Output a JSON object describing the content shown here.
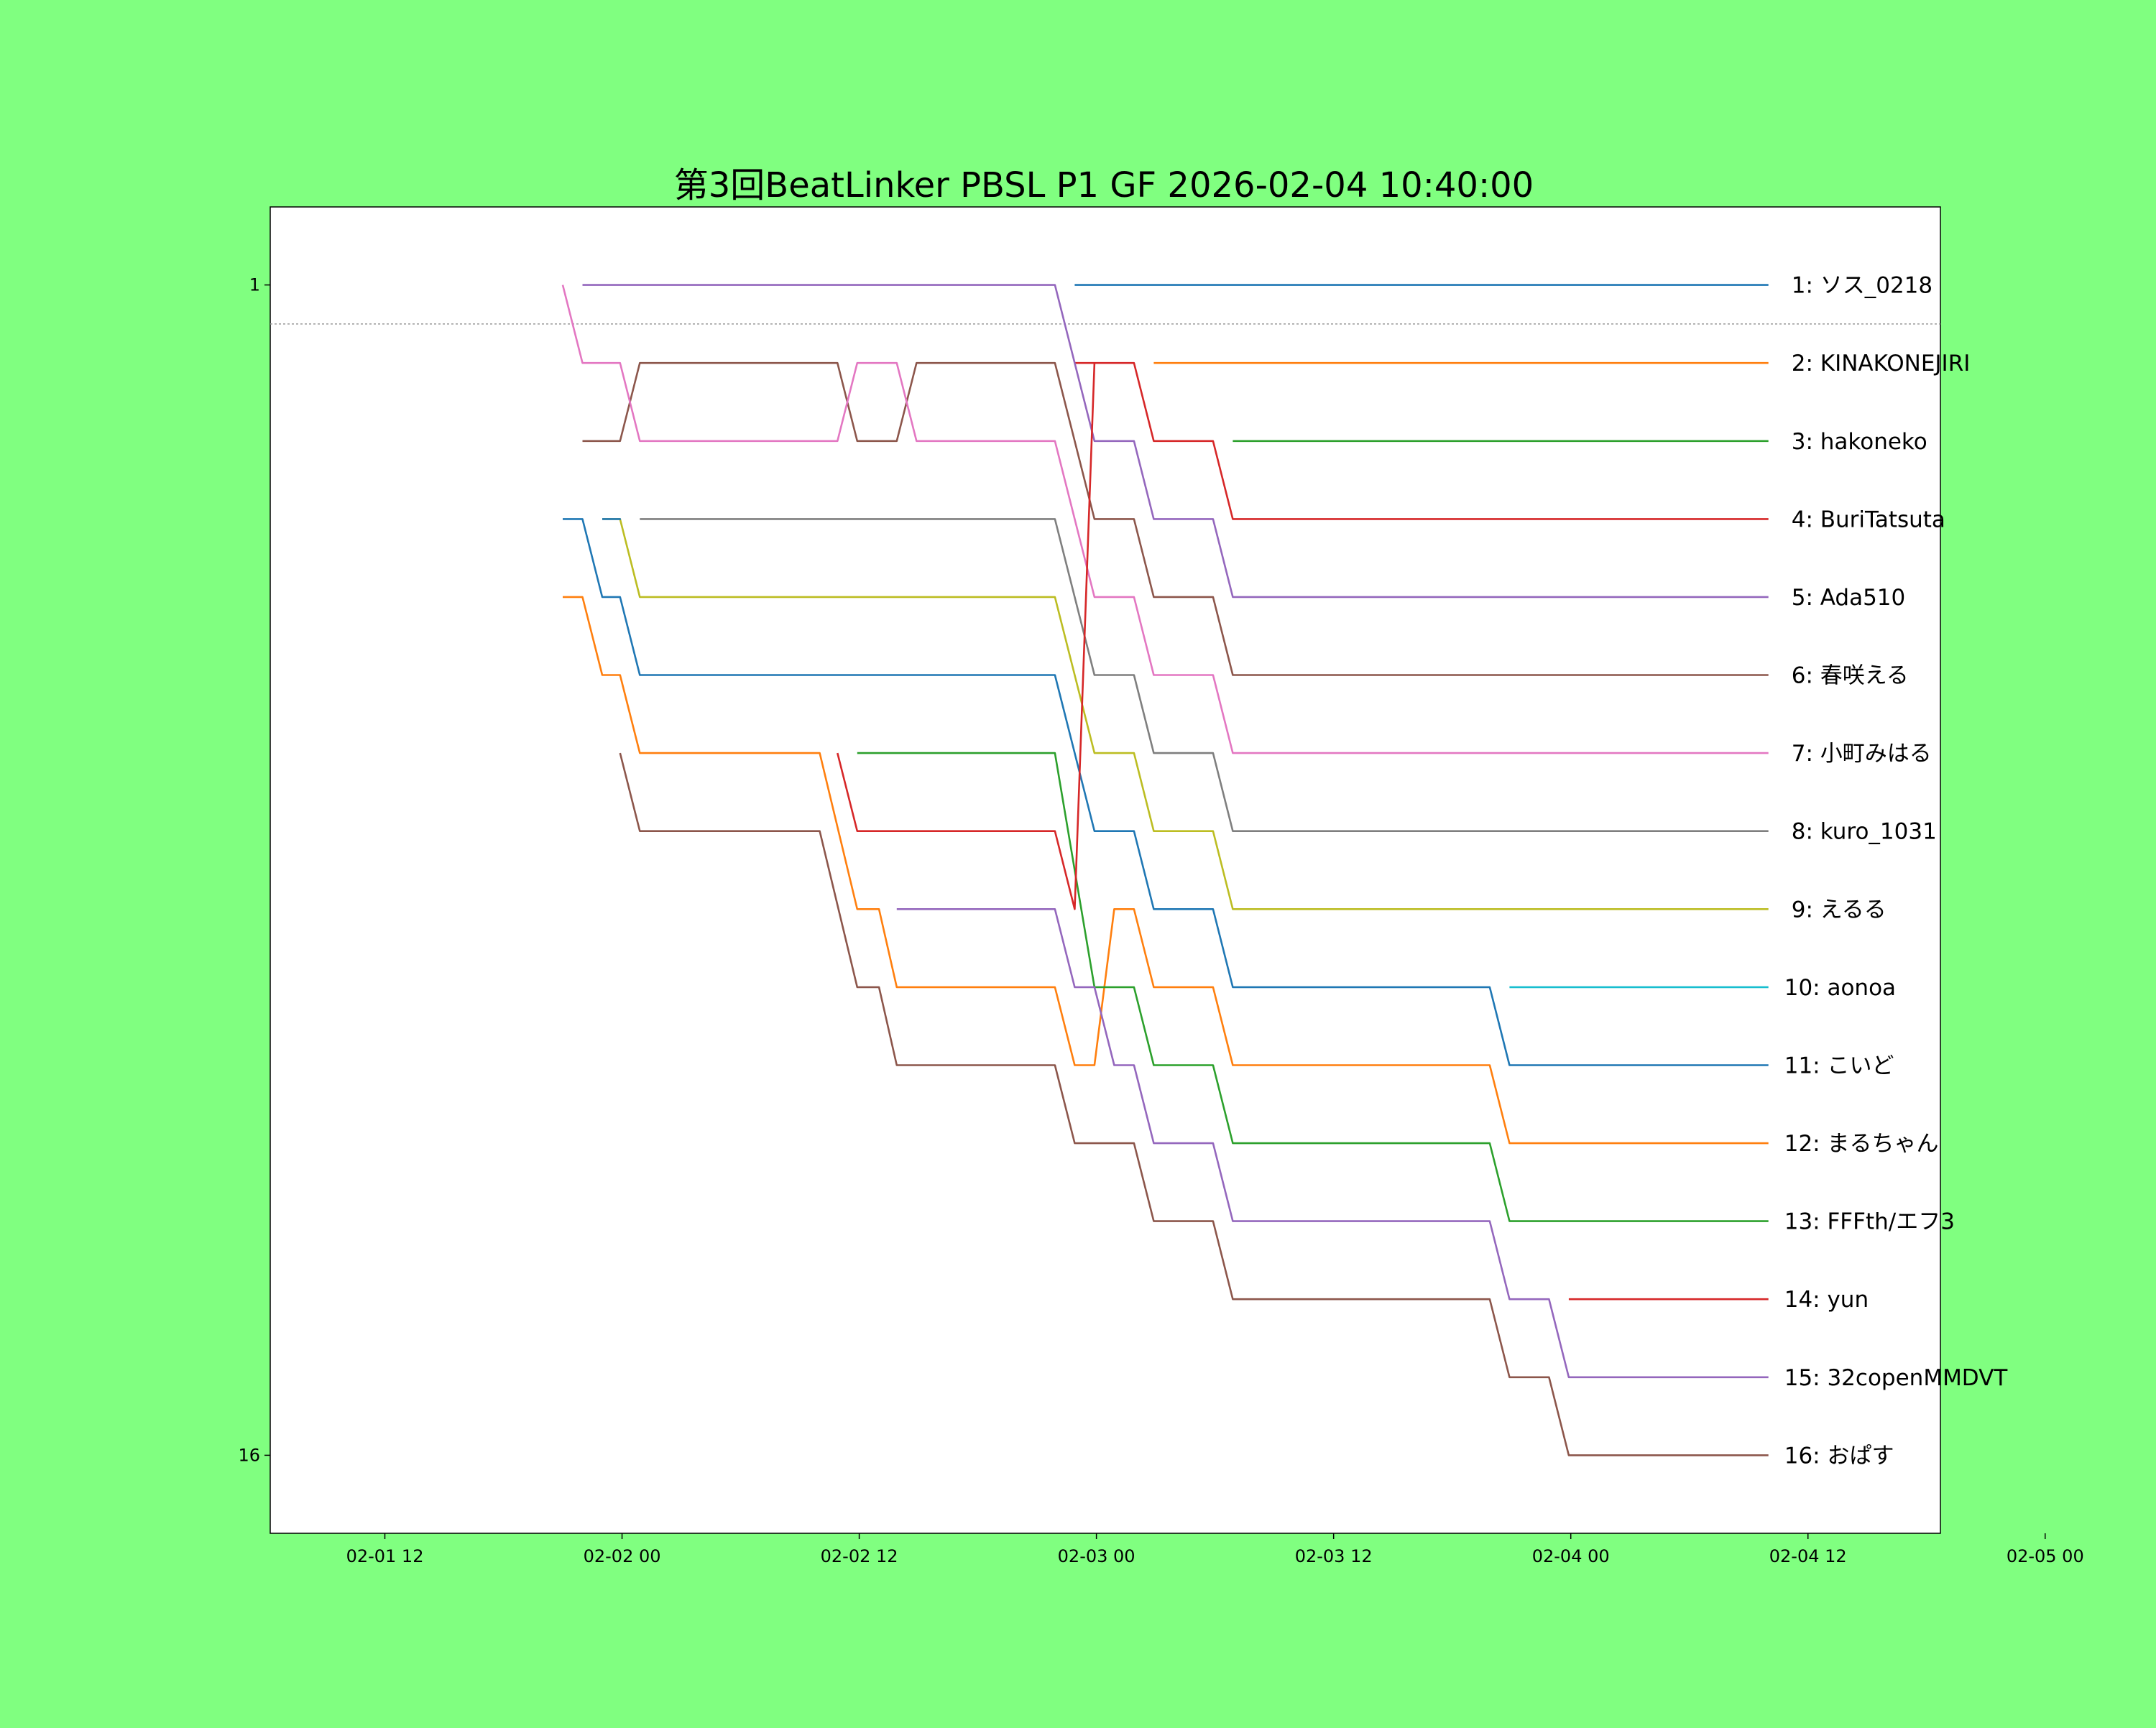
{
  "colors": {
    "background": "#80ff80",
    "plot_background": "#ffffff",
    "cutoff_line": "#999999"
  },
  "chart_data": {
    "type": "line",
    "title": "第3回BeatLinker PBSL P1 GF 2026-02-04 10:40:00",
    "xlabel": "",
    "ylabel": "",
    "x_unit": "hours since 2026-02-01 00:00",
    "xlim": [
      6.2,
      90.7
    ],
    "ylim": [
      17,
      0
    ],
    "y_inverted": true,
    "grid": false,
    "cutoff_rank": 1.5,
    "xticks": [
      {
        "value": 12,
        "label": "02-01 12"
      },
      {
        "value": 24,
        "label": "02-02 00"
      },
      {
        "value": 36,
        "label": "02-02 12"
      },
      {
        "value": 48,
        "label": "02-03 00"
      },
      {
        "value": 60,
        "label": "02-03 12"
      },
      {
        "value": 72,
        "label": "02-04 00"
      },
      {
        "value": 84,
        "label": "02-04 12"
      },
      {
        "value": 96,
        "label": "02-05 00"
      }
    ],
    "yticks": [
      {
        "value": 1,
        "label": "1"
      },
      {
        "value": 16,
        "label": "16"
      }
    ],
    "label_x": 82.8,
    "labels": [
      {
        "rank": 1,
        "text": "1: ソス_0218"
      },
      {
        "rank": 2,
        "text": "2: KINAKONEJIRI"
      },
      {
        "rank": 3,
        "text": "3: hakoneko"
      },
      {
        "rank": 4,
        "text": "4: BuriTatsuta"
      },
      {
        "rank": 5,
        "text": "5: Ada510"
      },
      {
        "rank": 6,
        "text": "6: 春咲える"
      },
      {
        "rank": 7,
        "text": "7: 小町みはる"
      },
      {
        "rank": 8,
        "text": "8: kuro_1031"
      },
      {
        "rank": 9,
        "text": "9: えるる"
      },
      {
        "rank": 10,
        "text": "10: aonoa"
      },
      {
        "rank": 11,
        "text": "11: こいど"
      },
      {
        "rank": 12,
        "text": "12: まるちゃん"
      },
      {
        "rank": 13,
        "text": "13: FFFth/エフ3"
      },
      {
        "rank": 14,
        "text": "14: yun"
      },
      {
        "rank": 15,
        "text": "15: 32copenMMDVT"
      },
      {
        "rank": 16,
        "text": "16: おぱす"
      }
    ],
    "series": [
      {
        "color": "#1f77b4",
        "points": [
          [
            46.9,
            1
          ],
          [
            82.0,
            1
          ]
        ]
      },
      {
        "color": "#ff7f0e",
        "points": [
          [
            50.9,
            2
          ],
          [
            82.0,
            2
          ]
        ]
      },
      {
        "color": "#2ca02c",
        "points": [
          [
            54.9,
            3
          ],
          [
            82.0,
            3
          ]
        ]
      },
      {
        "color": "#d62728",
        "points": [
          [
            46.9,
            2
          ],
          [
            49.9,
            2
          ],
          [
            50.9,
            3
          ],
          [
            53.9,
            3
          ],
          [
            54.9,
            4
          ],
          [
            82.0,
            4
          ]
        ]
      },
      {
        "color": "#9467bd",
        "points": [
          [
            22.0,
            1
          ],
          [
            45.9,
            1
          ],
          [
            47.9,
            3
          ],
          [
            49.9,
            3
          ],
          [
            50.9,
            4
          ],
          [
            53.9,
            4
          ],
          [
            54.9,
            5
          ],
          [
            82.0,
            5
          ]
        ]
      },
      {
        "color": "#8c564b",
        "points": [
          [
            22.0,
            3
          ],
          [
            23.9,
            3
          ],
          [
            24.9,
            2
          ],
          [
            34.9,
            2
          ],
          [
            35.9,
            3
          ],
          [
            37.9,
            3
          ],
          [
            38.9,
            2
          ],
          [
            45.9,
            2
          ],
          [
            47.9,
            4
          ],
          [
            49.9,
            4
          ],
          [
            50.9,
            5
          ],
          [
            53.9,
            5
          ],
          [
            54.9,
            6
          ],
          [
            82.0,
            6
          ]
        ]
      },
      {
        "color": "#e377c2",
        "points": [
          [
            21.0,
            1
          ],
          [
            22.0,
            2
          ],
          [
            23.9,
            2
          ],
          [
            24.9,
            3
          ],
          [
            34.9,
            3
          ],
          [
            35.9,
            2
          ],
          [
            37.9,
            2
          ],
          [
            38.9,
            3
          ],
          [
            45.9,
            3
          ],
          [
            47.9,
            5
          ],
          [
            49.9,
            5
          ],
          [
            50.9,
            6
          ],
          [
            53.9,
            6
          ],
          [
            54.9,
            7
          ],
          [
            82.0,
            7
          ]
        ]
      },
      {
        "color": "#7f7f7f",
        "points": [
          [
            24.9,
            4
          ],
          [
            45.9,
            4
          ],
          [
            47.9,
            6
          ],
          [
            49.9,
            6
          ],
          [
            50.9,
            7
          ],
          [
            53.9,
            7
          ],
          [
            54.9,
            8
          ],
          [
            82.0,
            8
          ]
        ]
      },
      {
        "color": "#bcbd22",
        "points": [
          [
            23.0,
            4
          ],
          [
            23.9,
            4
          ],
          [
            24.9,
            5
          ],
          [
            45.9,
            5
          ],
          [
            47.9,
            7
          ],
          [
            49.9,
            7
          ],
          [
            50.9,
            8
          ],
          [
            53.9,
            8
          ],
          [
            54.9,
            9
          ],
          [
            82.0,
            9
          ]
        ]
      },
      {
        "color": "#17becf",
        "points": [
          [
            68.9,
            10
          ],
          [
            82.0,
            10
          ]
        ]
      },
      {
        "color": "#1f77b4",
        "points": [
          [
            23.0,
            4
          ],
          [
            23.9,
            4
          ],
          [
            23.0,
            4
          ]
        ]
      },
      {
        "color": "#1f77b4",
        "points": [
          [
            21.0,
            4
          ],
          [
            22.0,
            4
          ],
          [
            23.0,
            5
          ],
          [
            23.9,
            5
          ],
          [
            24.9,
            6
          ],
          [
            45.9,
            6
          ],
          [
            47.9,
            8
          ],
          [
            49.9,
            8
          ],
          [
            50.9,
            9
          ],
          [
            53.9,
            9
          ],
          [
            54.9,
            10
          ],
          [
            67.9,
            10
          ],
          [
            68.9,
            11
          ],
          [
            82.0,
            11
          ]
        ]
      },
      {
        "color": "#ff7f0e",
        "points": [
          [
            21.0,
            5
          ],
          [
            22.0,
            5
          ],
          [
            23.0,
            6
          ],
          [
            23.9,
            6
          ],
          [
            24.9,
            7
          ],
          [
            34.0,
            7
          ],
          [
            35.9,
            9
          ],
          [
            37.0,
            9
          ],
          [
            37.9,
            10
          ],
          [
            45.9,
            10
          ],
          [
            46.9,
            11
          ],
          [
            47.9,
            11
          ],
          [
            48.9,
            9
          ],
          [
            49.9,
            9
          ],
          [
            50.9,
            10
          ],
          [
            53.9,
            10
          ],
          [
            54.9,
            11
          ],
          [
            67.9,
            11
          ],
          [
            68.9,
            12
          ],
          [
            82.0,
            12
          ]
        ]
      },
      {
        "color": "#2ca02c",
        "points": [
          [
            35.9,
            7
          ],
          [
            45.9,
            7
          ],
          [
            47.9,
            10
          ],
          [
            49.9,
            10
          ],
          [
            50.9,
            11
          ],
          [
            53.9,
            11
          ],
          [
            54.9,
            12
          ],
          [
            67.9,
            12
          ],
          [
            68.9,
            13
          ],
          [
            82.0,
            13
          ]
        ]
      },
      {
        "color": "#d62728",
        "points": [
          [
            34.9,
            7
          ],
          [
            35.9,
            8
          ],
          [
            45.9,
            8
          ],
          [
            46.9,
            9
          ],
          [
            47.9,
            2
          ]
        ]
      },
      {
        "color": "#d62728",
        "points": [
          [
            71.9,
            14
          ],
          [
            82.0,
            14
          ]
        ]
      },
      {
        "color": "#9467bd",
        "points": [
          [
            37.9,
            9
          ],
          [
            45.9,
            9
          ],
          [
            46.9,
            10
          ],
          [
            47.9,
            10
          ],
          [
            48.9,
            11
          ],
          [
            49.9,
            11
          ],
          [
            50.9,
            12
          ],
          [
            53.9,
            12
          ],
          [
            54.9,
            13
          ],
          [
            67.9,
            13
          ],
          [
            68.9,
            14
          ],
          [
            70.9,
            14
          ],
          [
            71.9,
            15
          ],
          [
            82.0,
            15
          ]
        ]
      },
      {
        "color": "#8c564b",
        "points": [
          [
            23.9,
            7
          ],
          [
            24.9,
            8
          ],
          [
            34.0,
            8
          ],
          [
            35.9,
            10
          ],
          [
            37.0,
            10
          ],
          [
            37.9,
            11
          ],
          [
            45.9,
            11
          ],
          [
            46.9,
            12
          ],
          [
            49.9,
            12
          ],
          [
            50.9,
            13
          ],
          [
            53.9,
            13
          ],
          [
            54.9,
            14
          ],
          [
            67.9,
            14
          ],
          [
            68.9,
            15
          ],
          [
            70.9,
            15
          ],
          [
            71.9,
            16
          ],
          [
            82.0,
            16
          ]
        ]
      }
    ]
  }
}
